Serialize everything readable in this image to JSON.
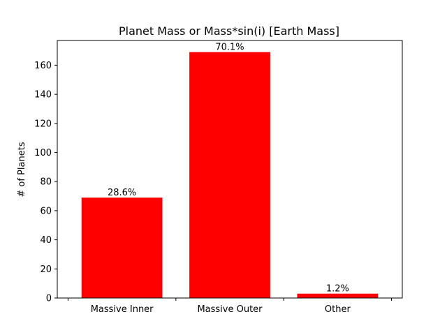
{
  "chart_data": {
    "type": "bar",
    "title": "Planet Mass or Mass*sin(i) [Earth Mass]",
    "xlabel": "",
    "ylabel": "# of Planets",
    "categories": [
      "Massive Inner",
      "Massive Outer",
      "Other"
    ],
    "values": [
      69,
      169,
      3
    ],
    "data_labels": [
      "28.6%",
      "70.1%",
      "1.2%"
    ],
    "ylim": [
      0,
      177
    ],
    "yticks": [
      0,
      20,
      40,
      60,
      80,
      100,
      120,
      140,
      160
    ],
    "bar_color": "#ff0000",
    "grid": false,
    "legend": "none"
  }
}
